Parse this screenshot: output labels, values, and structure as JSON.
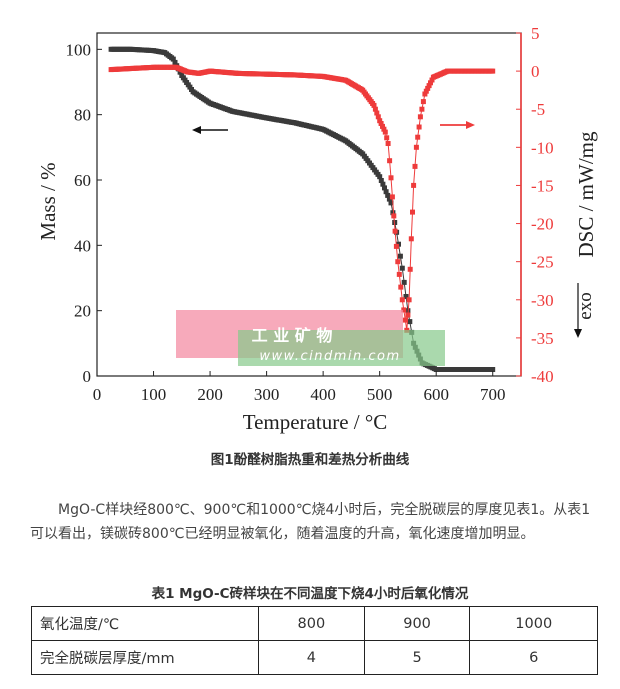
{
  "figure": {
    "caption": "图1酚醛树脂热重和差热分析曲线",
    "watermark": {
      "line1": "工 业 矿 物",
      "line2": "www.cindmin.com"
    }
  },
  "paragraph": "MgO-C样块经800℃、900℃和1000℃烧4小时后，完全脱碳层的厚度见表1。从表1可以看出，镁碳砖800℃已经明显被氧化，随着温度的升高，氧化速度增加明显。",
  "table": {
    "caption": "表1 MgO-C砖样块在不同温度下烧4小时后氧化情况",
    "rows": [
      {
        "label": "氧化温度/℃",
        "values": [
          "800",
          "900",
          "1000"
        ]
      },
      {
        "label": "完全脱碳层厚度/mm",
        "values": [
          "4",
          "5",
          "6"
        ]
      }
    ]
  },
  "chart_data": {
    "type": "line",
    "xlabel": "Temperature / °C",
    "ylabel": "Mass / %",
    "y2label": "DSC / mW/mg",
    "y2_annotation": "exo",
    "xlim": [
      0,
      750
    ],
    "ylim": [
      0,
      105
    ],
    "y2lim": [
      -40,
      5
    ],
    "xticks": [
      "0",
      "100",
      "200",
      "300",
      "400",
      "500",
      "600",
      "700"
    ],
    "yticks": [
      "0",
      "20",
      "40",
      "60",
      "80",
      "100"
    ],
    "y2ticks": [
      "5",
      "0",
      "-5",
      "-10",
      "-15",
      "-20",
      "-25",
      "-30",
      "-35",
      "-40"
    ],
    "grid": false,
    "series": [
      {
        "color": "#3a3a3a",
        "axis": "left",
        "arrow": "left",
        "points": [
          [
            25,
            100
          ],
          [
            60,
            100
          ],
          [
            100,
            99.6
          ],
          [
            120,
            99
          ],
          [
            135,
            97
          ],
          [
            150,
            92
          ],
          [
            170,
            87
          ],
          [
            200,
            83.5
          ],
          [
            240,
            81
          ],
          [
            300,
            79
          ],
          [
            350,
            77.5
          ],
          [
            400,
            75.5
          ],
          [
            440,
            72
          ],
          [
            470,
            68
          ],
          [
            500,
            61
          ],
          [
            520,
            53
          ],
          [
            530,
            44
          ],
          [
            540,
            33
          ],
          [
            550,
            20
          ],
          [
            560,
            10
          ],
          [
            575,
            4
          ],
          [
            600,
            2
          ],
          [
            650,
            2
          ],
          [
            700,
            2
          ]
        ]
      },
      {
        "color": "#ee3b3b",
        "axis": "right",
        "arrow": "right",
        "points": [
          [
            25,
            0.2
          ],
          [
            100,
            0.5
          ],
          [
            140,
            0.5
          ],
          [
            160,
            -0.1
          ],
          [
            180,
            -0.3
          ],
          [
            200,
            0
          ],
          [
            250,
            -0.3
          ],
          [
            300,
            -0.4
          ],
          [
            350,
            -0.5
          ],
          [
            400,
            -0.7
          ],
          [
            440,
            -1.2
          ],
          [
            470,
            -2.5
          ],
          [
            490,
            -4.5
          ],
          [
            500,
            -6.5
          ],
          [
            510,
            -8
          ],
          [
            515,
            -9.5
          ],
          [
            520,
            -14
          ],
          [
            525,
            -19
          ],
          [
            532,
            -25
          ],
          [
            540,
            -30
          ],
          [
            548,
            -34
          ],
          [
            552,
            -30
          ],
          [
            556,
            -22
          ],
          [
            560,
            -15
          ],
          [
            565,
            -10
          ],
          [
            572,
            -6
          ],
          [
            580,
            -3
          ],
          [
            595,
            -0.8
          ],
          [
            620,
            0
          ],
          [
            700,
            0
          ]
        ]
      }
    ]
  }
}
